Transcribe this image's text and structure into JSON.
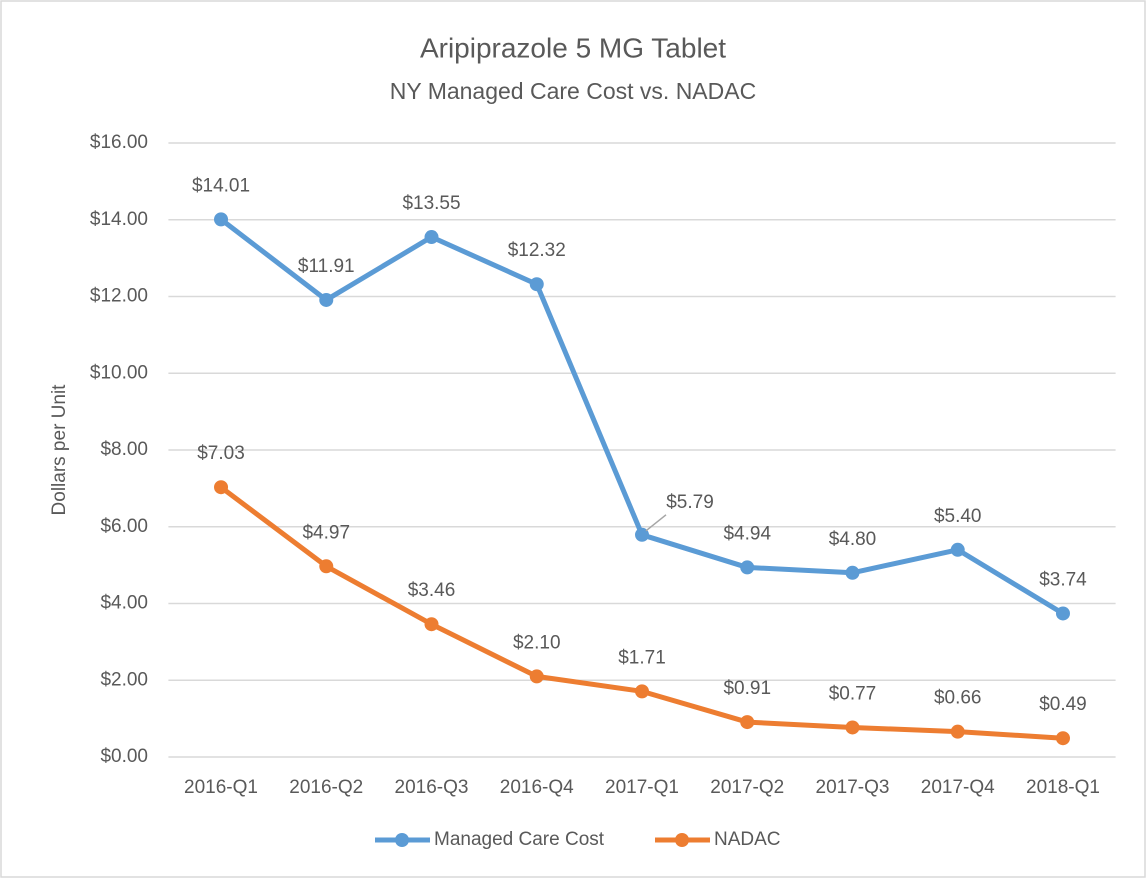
{
  "chart_data": {
    "type": "line",
    "title": "Aripiprazole 5 MG Tablet",
    "subtitle": "NY Managed Care Cost vs. NADAC",
    "y_label": "Dollars per Unit",
    "categories": [
      "2016-Q1",
      "2016-Q2",
      "2016-Q3",
      "2016-Q4",
      "2017-Q1",
      "2017-Q2",
      "2017-Q3",
      "2017-Q4",
      "2018-Q1"
    ],
    "series": [
      {
        "name": "Managed Care Cost",
        "color": "#5b9bd5",
        "values": [
          14.01,
          11.91,
          13.55,
          12.32,
          5.79,
          4.94,
          4.8,
          5.4,
          3.74
        ],
        "value_labels": [
          "$14.01",
          "$11.91",
          "$13.55",
          "$12.32",
          "$5.79",
          "$4.94",
          "$4.80",
          "$5.40",
          "$3.74"
        ]
      },
      {
        "name": "NADAC",
        "color": "#ed7d31",
        "values": [
          7.03,
          4.97,
          3.46,
          2.1,
          1.71,
          0.91,
          0.77,
          0.66,
          0.49
        ],
        "value_labels": [
          "$7.03",
          "$4.97",
          "$3.46",
          "$2.10",
          "$1.71",
          "$0.91",
          "$0.77",
          "$0.66",
          "$0.49"
        ]
      }
    ],
    "ylim": [
      0,
      16
    ],
    "yticks": [
      {
        "value": 0,
        "label": "$0.00"
      },
      {
        "value": 2,
        "label": "$2.00"
      },
      {
        "value": 4,
        "label": "$4.00"
      },
      {
        "value": 6,
        "label": "$6.00"
      },
      {
        "value": 8,
        "label": "$8.00"
      },
      {
        "value": 10,
        "label": "$10.00"
      },
      {
        "value": 12,
        "label": "$12.00"
      },
      {
        "value": 14,
        "label": "$14.00"
      },
      {
        "value": 16,
        "label": "$16.00"
      }
    ],
    "grid": true,
    "legend": "bottom"
  }
}
